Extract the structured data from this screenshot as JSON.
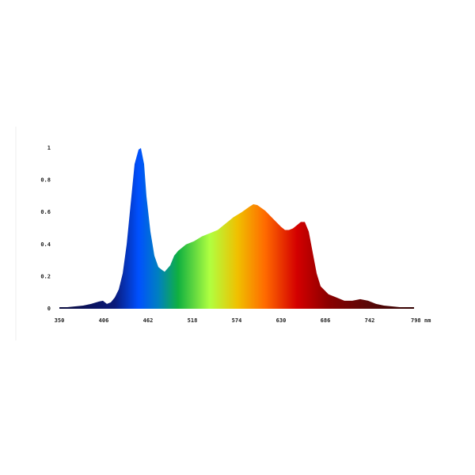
{
  "chart_data": {
    "type": "area",
    "x": [
      350,
      360,
      370,
      380,
      390,
      400,
      405,
      410,
      415,
      420,
      425,
      430,
      435,
      440,
      445,
      450,
      453,
      457,
      460,
      465,
      470,
      475,
      480,
      483,
      490,
      495,
      500,
      510,
      520,
      530,
      540,
      550,
      560,
      570,
      580,
      590,
      595,
      600,
      610,
      620,
      630,
      635,
      640,
      645,
      650,
      655,
      660,
      665,
      670,
      675,
      680,
      690,
      700,
      710,
      720,
      730,
      740,
      750,
      760,
      770,
      780,
      790,
      798
    ],
    "values": [
      0.01,
      0.01,
      0.015,
      0.02,
      0.03,
      0.045,
      0.05,
      0.03,
      0.04,
      0.07,
      0.12,
      0.22,
      0.4,
      0.65,
      0.9,
      0.99,
      1.0,
      0.9,
      0.7,
      0.48,
      0.33,
      0.26,
      0.24,
      0.23,
      0.27,
      0.33,
      0.36,
      0.4,
      0.42,
      0.45,
      0.47,
      0.49,
      0.53,
      0.57,
      0.6,
      0.635,
      0.65,
      0.645,
      0.61,
      0.56,
      0.51,
      0.49,
      0.49,
      0.5,
      0.52,
      0.54,
      0.54,
      0.48,
      0.35,
      0.22,
      0.14,
      0.09,
      0.07,
      0.05,
      0.05,
      0.06,
      0.05,
      0.03,
      0.02,
      0.015,
      0.01,
      0.01,
      0.01
    ],
    "xlim": [
      350,
      798
    ],
    "ylim": [
      0,
      1
    ],
    "xticks": [
      350,
      406,
      462,
      518,
      574,
      630,
      686,
      742,
      {
        "value": 798,
        "label": "798 nm"
      }
    ],
    "yticks": [
      0,
      0.2,
      0.4,
      0.6,
      0.8,
      1
    ],
    "gradient": [
      {
        "value": 350,
        "color": "#0a0a3c"
      },
      {
        "value": 420,
        "color": "#0a1a7a"
      },
      {
        "value": 450,
        "color": "#0050ff"
      },
      {
        "value": 475,
        "color": "#0080c0"
      },
      {
        "value": 500,
        "color": "#10b040"
      },
      {
        "value": 540,
        "color": "#b0ff40"
      },
      {
        "value": 575,
        "color": "#f0c000"
      },
      {
        "value": 610,
        "color": "#ff6a00"
      },
      {
        "value": 650,
        "color": "#d40000"
      },
      {
        "value": 690,
        "color": "#8a0000"
      },
      {
        "value": 740,
        "color": "#5a0808"
      },
      {
        "value": 798,
        "color": "#300000"
      }
    ]
  }
}
